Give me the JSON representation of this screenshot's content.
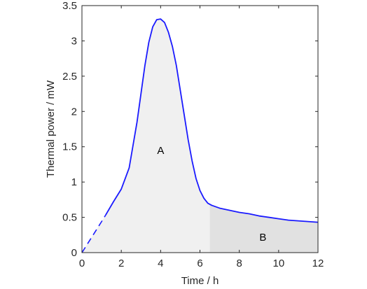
{
  "chart_data": {
    "type": "area",
    "xlabel": "Time / h",
    "ylabel": "Thermal power / mW",
    "xlim": [
      0,
      12
    ],
    "ylim": [
      0,
      3.5
    ],
    "x_ticks": [
      "0",
      "2",
      "4",
      "6",
      "8",
      "10",
      "12"
    ],
    "y_ticks": [
      "0",
      "0.5",
      "1",
      "1.5",
      "2",
      "2.5",
      "3",
      "3.5"
    ],
    "grid": false,
    "dashed_segment": {
      "x": [
        0,
        0.25,
        0.5,
        0.75,
        1.0,
        1.2
      ],
      "y": [
        0,
        0.11,
        0.22,
        0.33,
        0.44,
        0.53
      ]
    },
    "series": [
      {
        "x": [
          1.2,
          1.6,
          2.0,
          2.4,
          2.8,
          3.0,
          3.2,
          3.4,
          3.6,
          3.8,
          4.0,
          4.2,
          4.4,
          4.6,
          4.8,
          5.0,
          5.2,
          5.4,
          5.6,
          5.8,
          6.0,
          6.2,
          6.4,
          6.6,
          7.0,
          7.5,
          8.0,
          8.5,
          9.0,
          9.5,
          10.0,
          10.5,
          11.0,
          11.5,
          12.0
        ],
        "y": [
          0.53,
          0.72,
          0.9,
          1.2,
          1.85,
          2.25,
          2.65,
          2.98,
          3.2,
          3.3,
          3.31,
          3.26,
          3.12,
          2.92,
          2.65,
          2.3,
          1.95,
          1.6,
          1.3,
          1.05,
          0.88,
          0.77,
          0.7,
          0.67,
          0.63,
          0.6,
          0.57,
          0.55,
          0.52,
          0.5,
          0.48,
          0.46,
          0.45,
          0.44,
          0.43
        ]
      }
    ],
    "regions": [
      {
        "label": "A",
        "x_start": 0,
        "x_end": 6.5,
        "label_x": 4.0,
        "label_y": 1.45,
        "fill": "#f0f0f0"
      },
      {
        "label": "B",
        "x_start": 6.5,
        "x_end": 12.0,
        "label_x": 9.2,
        "label_y": 0.22,
        "fill": "#e1e1e1"
      }
    ],
    "colors": {
      "line": "#1a1aff",
      "axis": "#262626"
    }
  }
}
